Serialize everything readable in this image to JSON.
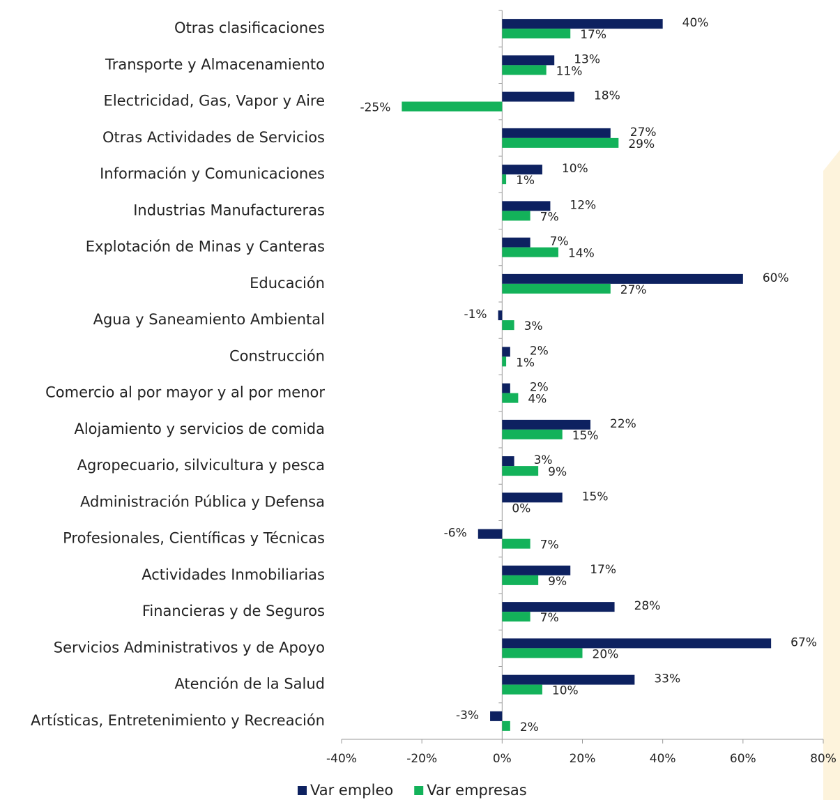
{
  "chart_data": {
    "type": "hbar",
    "categories": [
      "Otras clasificaciones",
      "Transporte y Almacenamiento",
      "Electricidad, Gas, Vapor y Aire",
      "Otras Actividades de Servicios",
      "Información y Comunicaciones",
      "Industrias Manufactureras",
      "Explotación de Minas y Canteras",
      "Educación",
      "Agua y Saneamiento Ambiental",
      "Construcción",
      "Comercio al por mayor y al por menor",
      "Alojamiento y servicios de comida",
      "Agropecuario, silvicultura y pesca",
      "Administración Pública y Defensa",
      "Profesionales, Científicas y Técnicas",
      "Actividades Inmobiliarias",
      "Financieras y de Seguros",
      "Servicios Administrativos y de Apoyo",
      "Atención de la Salud",
      "Artísticas, Entretenimiento y Recreación"
    ],
    "series": [
      {
        "name": "Var empleo",
        "color": "#0d2160",
        "values": [
          40,
          13,
          18,
          27,
          10,
          12,
          7,
          60,
          -1,
          2,
          2,
          22,
          3,
          15,
          -6,
          17,
          28,
          67,
          33,
          -3
        ],
        "value_labels": [
          "40%",
          "13%",
          "18%",
          "27%",
          "10%",
          "12%",
          "7%",
          "60%",
          "-1%",
          "2%",
          "2%",
          "22%",
          "3%",
          "15%",
          "-6%",
          "17%",
          "28%",
          "67%",
          "33%",
          "-3%"
        ]
      },
      {
        "name": "Var empresas",
        "color": "#13b25a",
        "values": [
          17,
          11,
          -25,
          29,
          1,
          7,
          14,
          27,
          3,
          1,
          4,
          15,
          9,
          0,
          7,
          9,
          7,
          20,
          10,
          2
        ],
        "value_labels": [
          "17%",
          "11%",
          "-25%",
          "29%",
          "1%",
          "7%",
          "14%",
          "27%",
          "3%",
          "1%",
          "4%",
          "15%",
          "9%",
          "0%",
          "7%",
          "9%",
          "7%",
          "20%",
          "10%",
          "2%"
        ]
      }
    ],
    "xlim": [
      -40,
      80
    ],
    "xticks": [
      {
        "value": -40,
        "label": "-40%"
      },
      {
        "value": -20,
        "label": "-20%"
      },
      {
        "value": 0,
        "label": "0%"
      },
      {
        "value": 20,
        "label": "20%"
      },
      {
        "value": 40,
        "label": "40%"
      },
      {
        "value": 60,
        "label": "60%"
      },
      {
        "value": 80,
        "label": "80%"
      }
    ],
    "legend": "bottom"
  }
}
